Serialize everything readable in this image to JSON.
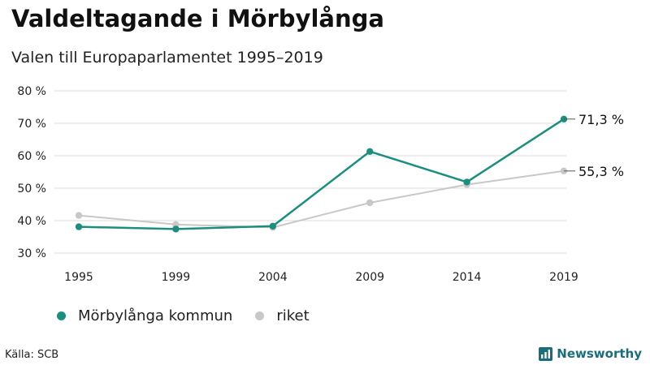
{
  "header": {
    "title": "Valdeltagande i Mörbylånga",
    "subtitle": "Valen till Europaparlamentet 1995–2019"
  },
  "footer": {
    "source": "Källa: SCB",
    "brand": "Newsworthy",
    "brand_icon": "bar-chart-logo-icon",
    "brand_color": "#1a6e7a"
  },
  "legend": {
    "items": [
      {
        "label": "Mörbylånga kommun",
        "color": "#1a8f80"
      },
      {
        "label": "riket",
        "color": "#c8c8c8"
      }
    ]
  },
  "chart_data": {
    "type": "line",
    "x": [
      "1995",
      "1999",
      "2004",
      "2009",
      "2014",
      "2019"
    ],
    "series": [
      {
        "name": "Mörbylånga kommun",
        "color": "#1a8f80",
        "values": [
          38.1,
          37.4,
          38.3,
          61.3,
          51.9,
          71.3
        ],
        "end_label": "71,3 %"
      },
      {
        "name": "riket",
        "color": "#c8c8c8",
        "values": [
          41.6,
          38.8,
          37.9,
          45.5,
          51.1,
          55.3
        ],
        "end_label": "55,3 %"
      }
    ],
    "ylim": [
      30,
      80
    ],
    "yticks": [
      30,
      40,
      50,
      60,
      70,
      80
    ],
    "ytick_labels": [
      "30 %",
      "40 %",
      "50 %",
      "60 %",
      "70 %",
      "80 %"
    ],
    "grid": true,
    "legend_position": "bottom-left"
  }
}
